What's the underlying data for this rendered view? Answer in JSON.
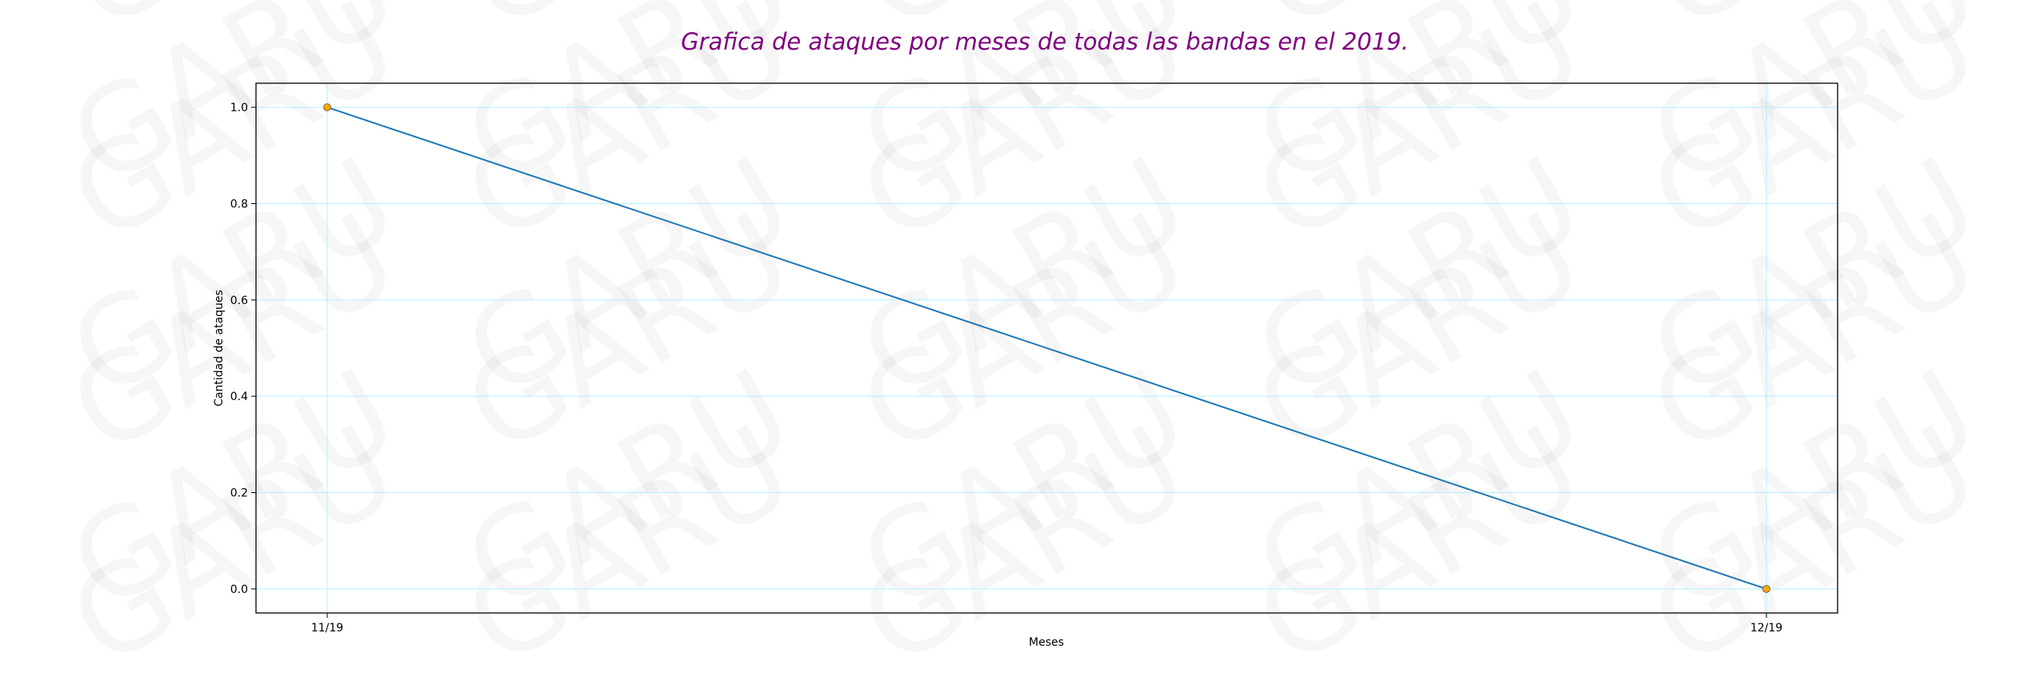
{
  "watermark": {
    "text": "GARU"
  },
  "chart_data": {
    "type": "line",
    "title": "Grafica de ataques por meses de todas las bandas en el 2019.",
    "title_color": "#800080",
    "xlabel": "Meses",
    "ylabel": "Cantidad de ataques",
    "categories": [
      "11/19",
      "12/19"
    ],
    "series": [
      {
        "values": [
          1.0,
          0.0
        ],
        "color": "#1f77b4",
        "marker_color": "#ffa500"
      }
    ],
    "ylim": [
      -0.05,
      1.05
    ],
    "yticks": [
      "0.0",
      "0.2",
      "0.4",
      "0.6",
      "0.8",
      "1.0"
    ],
    "grid": true,
    "grid_color": "#b0f0ff"
  }
}
